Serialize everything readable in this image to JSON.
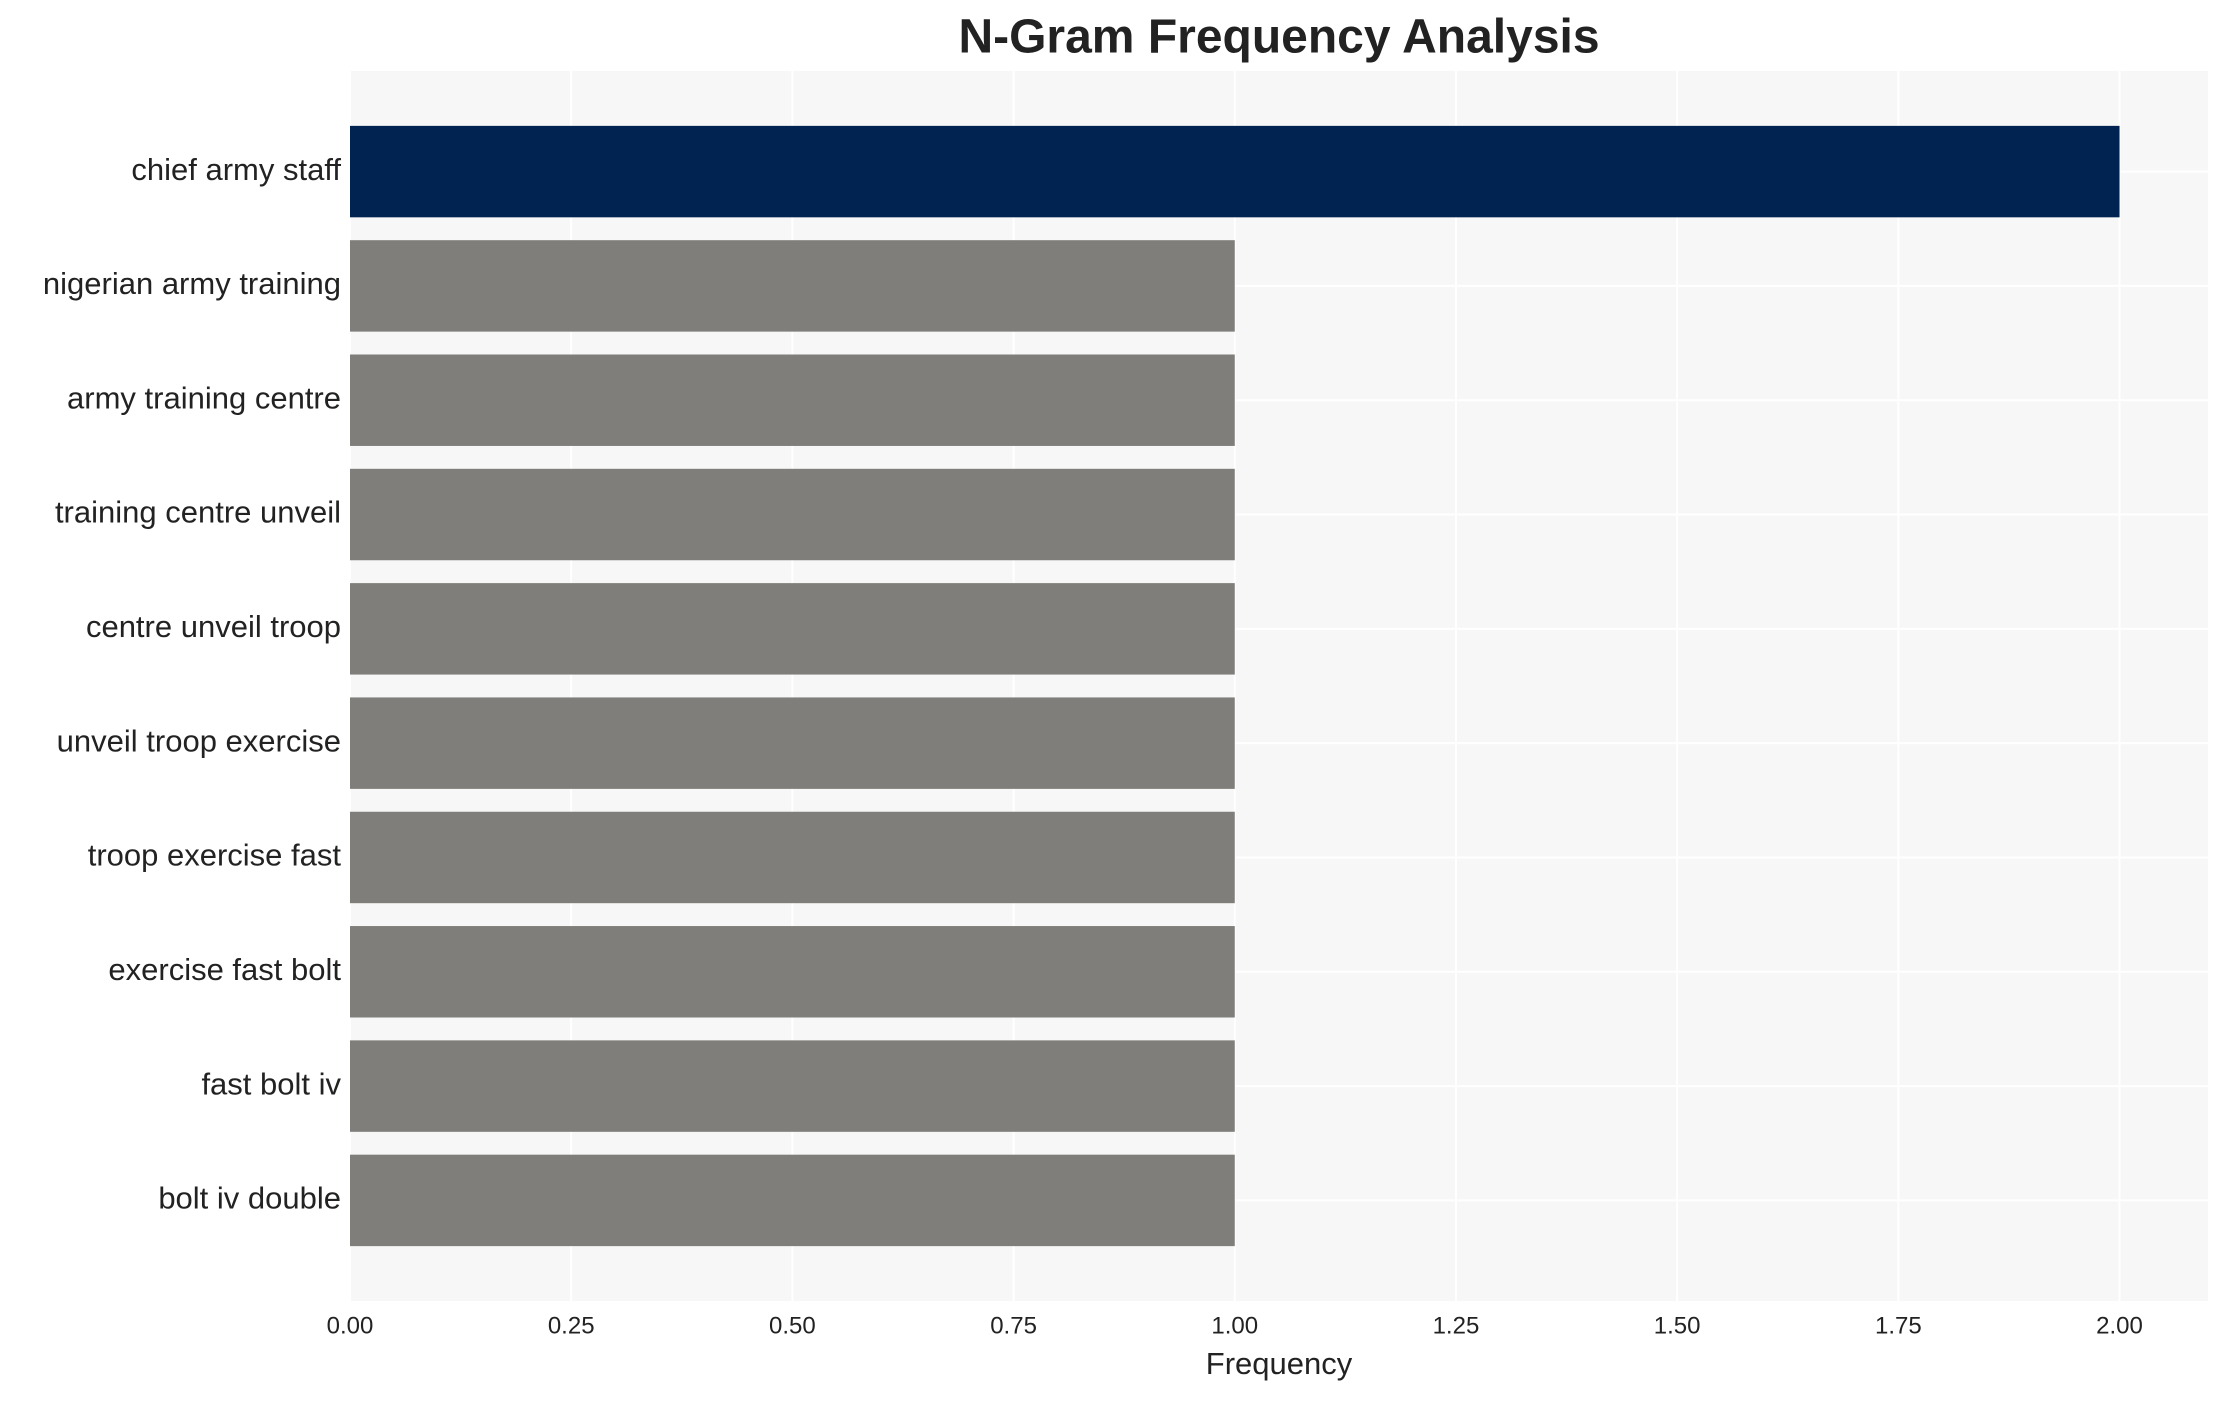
{
  "chart_data": {
    "type": "barh",
    "title": "N-Gram Frequency Analysis",
    "x_label": "Frequency",
    "categories": [
      "chief army staff",
      "nigerian army training",
      "army training centre",
      "training centre unveil",
      "centre unveil troop",
      "unveil troop exercise",
      "troop exercise fast",
      "exercise fast bolt",
      "fast bolt iv",
      "bolt iv double"
    ],
    "values": [
      2,
      1,
      1,
      1,
      1,
      1,
      1,
      1,
      1,
      1
    ],
    "colors": [
      "#002351",
      "#7f7e7a",
      "#7f7e7a",
      "#7f7e7a",
      "#7f7e7a",
      "#7f7e7a",
      "#7f7e7a",
      "#7f7e7a",
      "#7f7e7a",
      "#7f7e7a"
    ],
    "xlim": [
      0,
      2.1
    ],
    "xticks": [
      {
        "value": 0,
        "label": "0.00"
      },
      {
        "value": 0.25,
        "label": "0.25"
      },
      {
        "value": 0.5,
        "label": "0.50"
      },
      {
        "value": 0.75,
        "label": "0.75"
      },
      {
        "value": 1,
        "label": "1.00"
      },
      {
        "value": 1.25,
        "label": "1.25"
      },
      {
        "value": 1.5,
        "label": "1.50"
      },
      {
        "value": 1.75,
        "label": "1.75"
      },
      {
        "value": 2,
        "label": "2.00"
      }
    ],
    "grid": true
  }
}
